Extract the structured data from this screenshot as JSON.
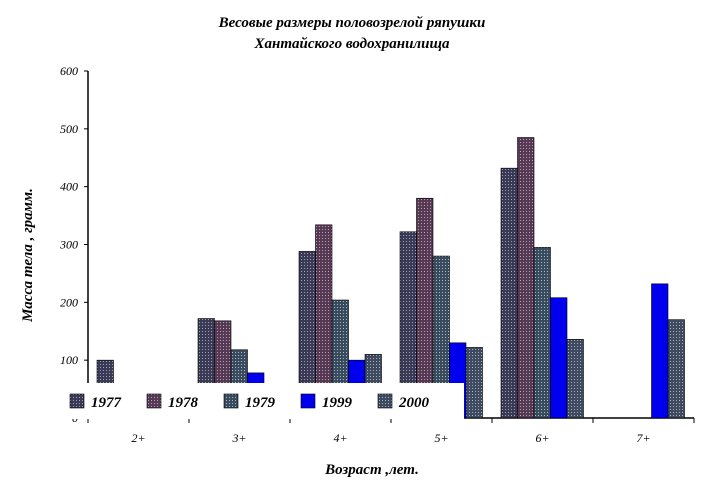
{
  "chart_data": {
    "type": "bar",
    "title": [
      "Весовые размеры половозрелой ряпушки",
      "Хантайского водохранилища"
    ],
    "xlabel": "Возраст ,лет.",
    "ylabel": "Масса тела , грамм.",
    "categories": [
      "2+",
      "3+",
      "4+",
      "5+",
      "6+",
      "7+"
    ],
    "y_ticks": [
      "0",
      "100",
      "200",
      "300",
      "400",
      "500",
      "600"
    ],
    "ylim": [
      0,
      600
    ],
    "grid": false,
    "legend_position": "bottom-left",
    "series": [
      {
        "name": "1977",
        "values": [
          100,
          172,
          288,
          322,
          432,
          0
        ],
        "color": "#4a4a66"
      },
      {
        "name": "1978",
        "values": [
          0,
          168,
          334,
          380,
          485,
          0
        ],
        "color": "#6a4a66"
      },
      {
        "name": "1979",
        "values": [
          0,
          118,
          204,
          280,
          295,
          0
        ],
        "color": "#4a5a70"
      },
      {
        "name": "1999",
        "values": [
          0,
          78,
          100,
          130,
          208,
          232
        ],
        "color": "#0000ee"
      },
      {
        "name": "2000",
        "values": [
          0,
          0,
          110,
          122,
          136,
          170
        ],
        "color": "#4e5a6e"
      }
    ]
  }
}
